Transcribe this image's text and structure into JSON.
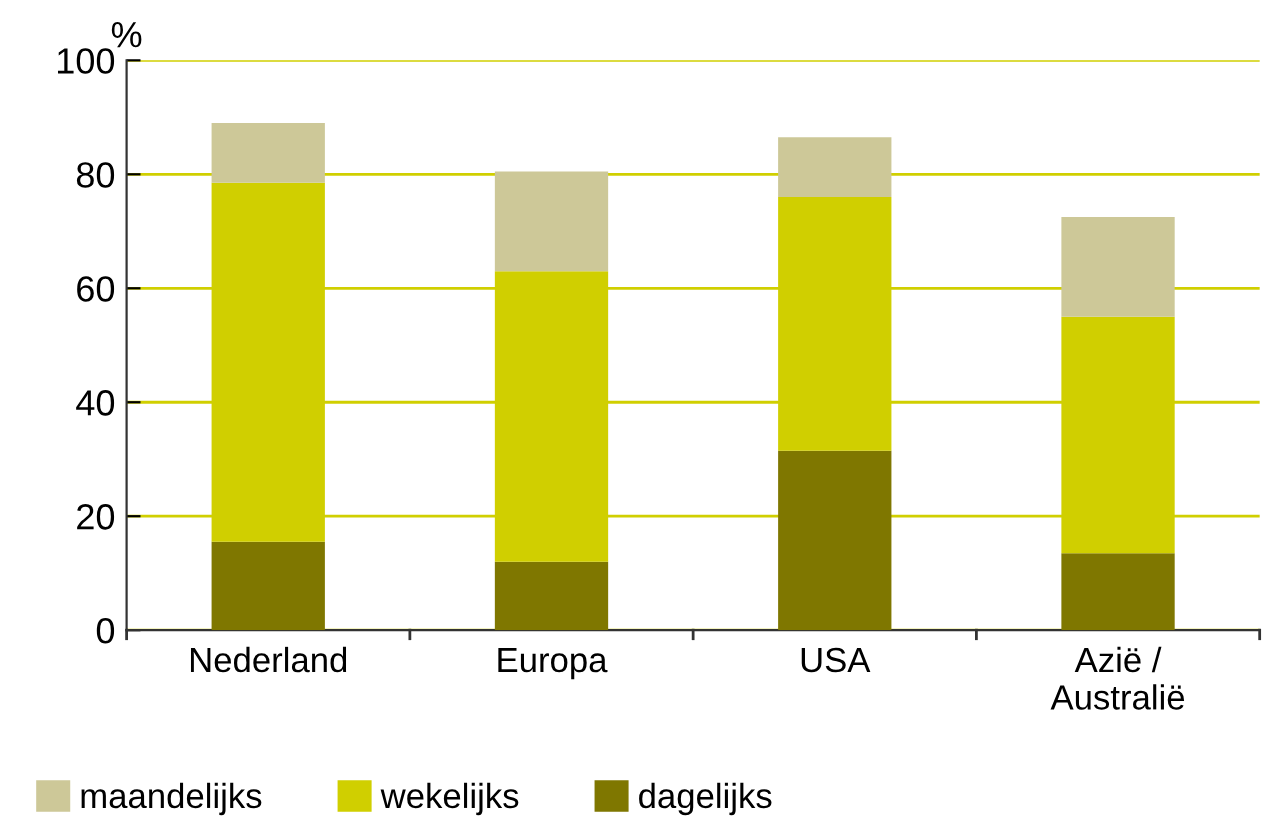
{
  "chart_data": {
    "type": "bar",
    "stacked": true,
    "ylabel": "%",
    "categories": [
      "Nederland",
      "Europa",
      "USA",
      "Azië /\nAustralië"
    ],
    "series": [
      {
        "name": "dagelijks",
        "color": "#7f7700",
        "values": [
          15.5,
          12,
          31.5,
          13.5
        ]
      },
      {
        "name": "wekelijks",
        "color": "#d0cf00",
        "values": [
          63,
          51,
          44.5,
          41.5
        ]
      },
      {
        "name": "maandelijks",
        "color": "#cdc898",
        "values": [
          10.5,
          17.5,
          10.5,
          17.5
        ]
      }
    ],
    "ylim": [
      0,
      100
    ],
    "yticks": [
      0,
      20,
      40,
      60,
      80,
      100
    ],
    "grid": "y",
    "legend": "bottom"
  }
}
